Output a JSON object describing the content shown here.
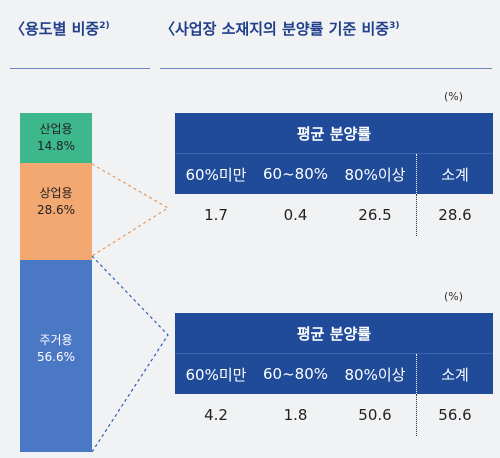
{
  "headings": {
    "left": "〈용도별 비중",
    "left_sup": "2)",
    "right": "〈사업장 소재지의 분양률 기준 비중",
    "right_sup": "3)"
  },
  "chart_data": [
    {
      "type": "bar",
      "title": "용도별 비중",
      "stacked": true,
      "categories": [
        "산업용",
        "상업용",
        "주거용"
      ],
      "values": [
        14.8,
        28.6,
        56.6
      ],
      "labels": [
        "14.8%",
        "28.6%",
        "56.6%"
      ],
      "colors": [
        "#3cb88c",
        "#f2a870",
        "#4a78c5"
      ]
    },
    {
      "type": "table",
      "unit": "(%)",
      "title": "평균 분양률",
      "columns": [
        "60%미만",
        "60~80%",
        "80%이상",
        "소계"
      ],
      "rows": [
        [
          "1.7",
          "0.4",
          "26.5",
          "28.6"
        ]
      ]
    },
    {
      "type": "table",
      "unit": "(%)",
      "title": "평균 분양률",
      "columns": [
        "60%미만",
        "60~80%",
        "80%이상",
        "소계"
      ],
      "rows": [
        [
          "4.2",
          "1.8",
          "50.6",
          "56.6"
        ]
      ]
    }
  ],
  "colors": {
    "heading": "#1f3f8a",
    "table_header": "#1f4b99",
    "background": "#f1f2f4"
  }
}
